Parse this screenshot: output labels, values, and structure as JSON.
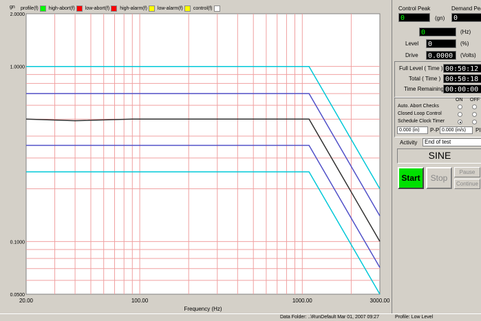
{
  "legend": [
    {
      "label": "profile(f)",
      "color": "#00ff00"
    },
    {
      "label": "high-abort(f)",
      "color": "#ff0000"
    },
    {
      "label": "low-abort(f)",
      "color": "#ff0000"
    },
    {
      "label": "high-alarm(f)",
      "color": "#ffff00"
    },
    {
      "label": "low-alarm(f)",
      "color": "#ffff00"
    },
    {
      "label": "control(f)",
      "color": "#ffffff"
    }
  ],
  "chart_data": {
    "type": "line",
    "xlabel": "Frequency (Hz)",
    "ylabel": "gn",
    "x_scale": "log",
    "y_scale": "log",
    "xlim": [
      20,
      3000
    ],
    "ylim": [
      0.05,
      2.0
    ],
    "x_ticks": [
      "20.00",
      "100.00",
      "1000.00",
      "3000.00"
    ],
    "y_ticks": [
      "2.0000",
      "1.0000",
      "0.1000",
      "0.0500"
    ],
    "grid": true,
    "series": [
      {
        "color": "#00c8d8",
        "x": [
          20,
          1100,
          3000
        ],
        "y": [
          1.0,
          1.0,
          0.2
        ]
      },
      {
        "color": "#5050c8",
        "x": [
          20,
          1100,
          3000
        ],
        "y": [
          0.7,
          0.7,
          0.14
        ]
      },
      {
        "color": "#303030",
        "x": [
          20,
          40,
          90,
          1100,
          3000
        ],
        "y": [
          0.5,
          0.49,
          0.5,
          0.5,
          0.1
        ]
      },
      {
        "color": "#5050c8",
        "x": [
          20,
          1100,
          3000
        ],
        "y": [
          0.354,
          0.354,
          0.071
        ]
      },
      {
        "color": "#00c8d8",
        "x": [
          20,
          1100,
          3000
        ],
        "y": [
          0.25,
          0.25,
          0.05
        ]
      }
    ]
  },
  "panel": {
    "control_peak_label": "Control Peak",
    "control_peak_value": "0",
    "demand_peak_label": "Demand Peak",
    "demand_peak_value": "0",
    "gn_unit": "(gn)",
    "freq_value": "0",
    "freq_unit": "(Hz)",
    "level_label": "Level",
    "level_value": "0",
    "level_unit": "(%)",
    "drive_label": "Drive",
    "drive_value": "0.0000",
    "drive_unit": "(Volts)",
    "full_level_label": "Full Level ( Time )",
    "full_level_value": "00:50:12",
    "total_label": "Total ( Time )",
    "total_value": "00:50:18",
    "remaining_label": "Time Remaining",
    "remaining_value": "00:00:00",
    "on_label": "ON",
    "off_label": "OFF",
    "checks": [
      {
        "label": "Auto. Abort Checks",
        "on": false,
        "off": false
      },
      {
        "label": "Closed Loop Control",
        "on": false,
        "off": false
      },
      {
        "label": "Schedule Clock Timer",
        "on": true,
        "off": false
      }
    ],
    "disp_value": "0.000 (in)",
    "pp_label": "P-P",
    "vel_value": "0.000 (in/s)",
    "pk_label": "PI",
    "activity_label": "Activity",
    "activity_value": "End of test",
    "mode": "SINE",
    "start_label": "Start",
    "stop_label": "Stop",
    "pause_label": "Pause",
    "continue_label": "Continue"
  },
  "status": {
    "data_folder": "Data Folder: ..\\RunDefault Mar 01, 2007 09:27",
    "profile": "Profile: Low Level"
  }
}
